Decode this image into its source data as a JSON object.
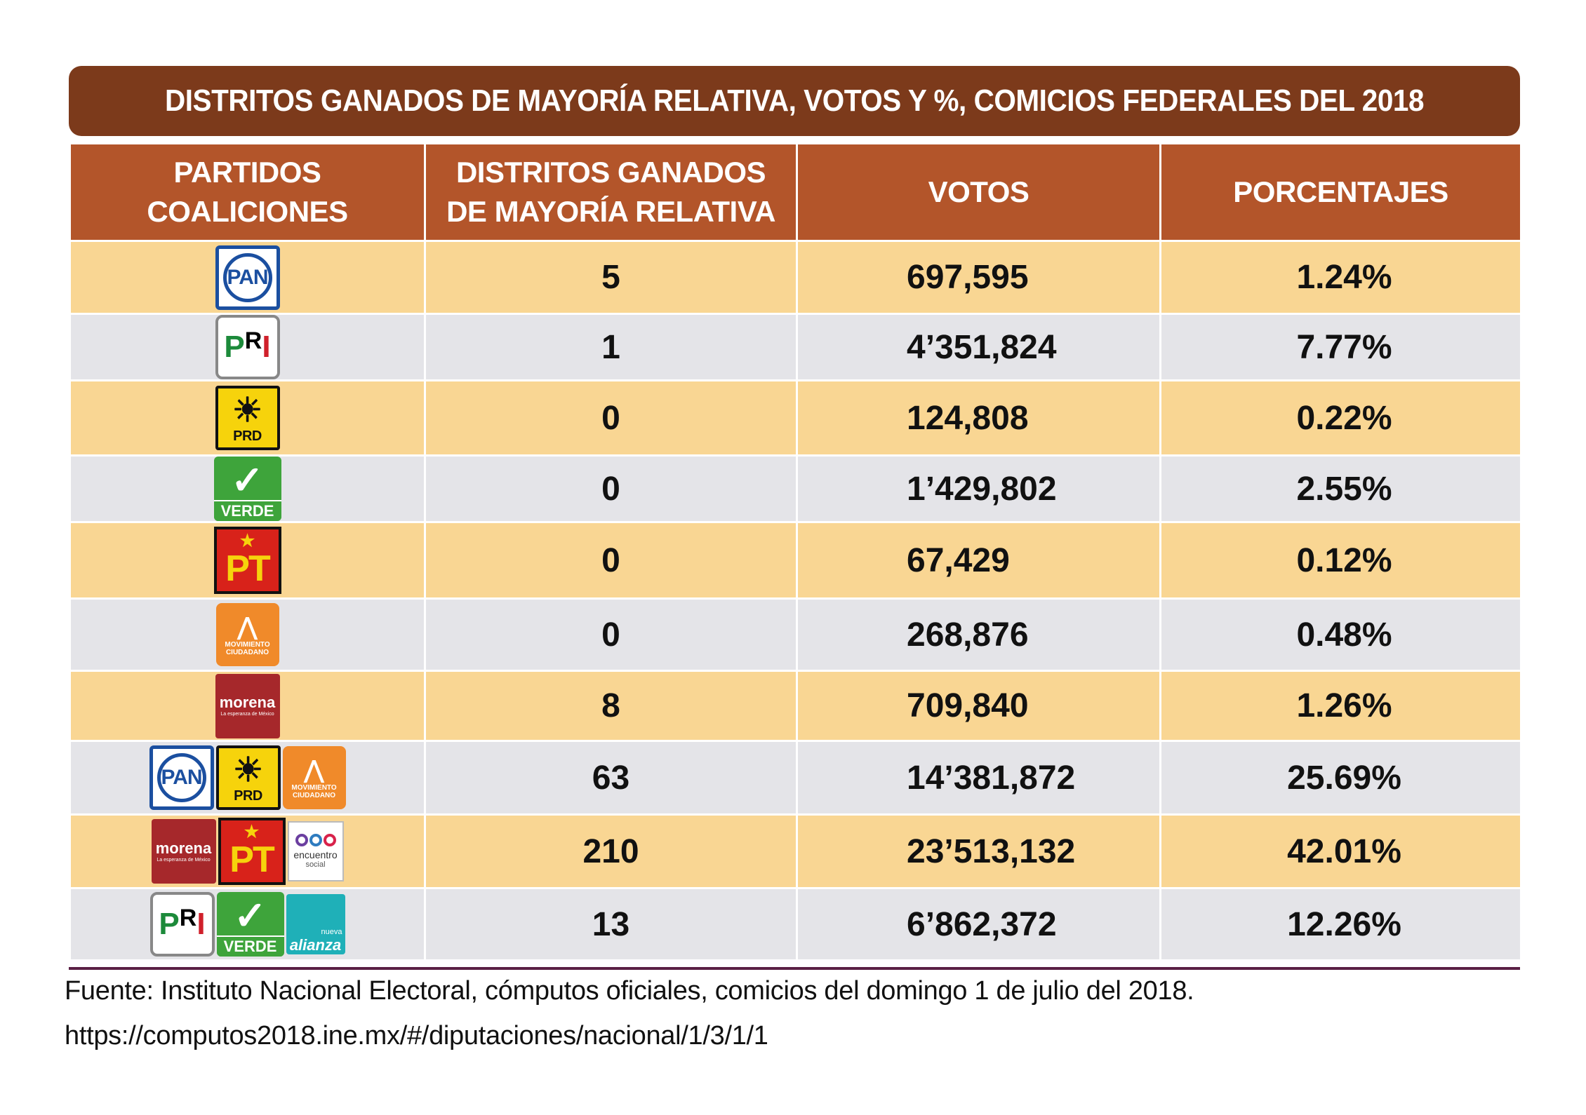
{
  "chart_data": {
    "type": "table",
    "title": "DISTRITOS GANADOS DE MAYORÍA RELATIVA, VOTOS Y %, COMICIOS FEDERALES DEL 2018",
    "columns": [
      "PARTIDOS COALICIONES",
      "DISTRITOS GANADOS DE MAYORÍA RELATIVA",
      "VOTOS",
      "PORCENTAJES"
    ],
    "header_lines": {
      "col1": [
        "PARTIDOS",
        "COALICIONES"
      ],
      "col2": [
        "DISTRITOS GANADOS",
        "DE MAYORÍA RELATIVA"
      ],
      "col3": "VOTOS",
      "col4": "PORCENTAJES"
    },
    "rows": [
      {
        "logos": [
          {
            "icon": "pan-logo",
            "text": "PAN"
          }
        ],
        "distritos": "5",
        "votos": "697,595",
        "porcentaje": "1.24%"
      },
      {
        "logos": [
          {
            "icon": "pri-logo",
            "text": "PRI"
          }
        ],
        "distritos": "1",
        "votos": "4’351,824",
        "porcentaje": "7.77%"
      },
      {
        "logos": [
          {
            "icon": "prd-logo",
            "text": "PRD"
          }
        ],
        "distritos": "0",
        "votos": "124,808",
        "porcentaje": "0.22%"
      },
      {
        "logos": [
          {
            "icon": "verde-logo",
            "text": "VERDE"
          }
        ],
        "distritos": "0",
        "votos": "1’429,802",
        "porcentaje": "2.55%"
      },
      {
        "logos": [
          {
            "icon": "pt-logo",
            "text": "PT"
          }
        ],
        "distritos": "0",
        "votos": "67,429",
        "porcentaje": "0.12%"
      },
      {
        "logos": [
          {
            "icon": "movimiento-ciudadano-logo",
            "text": "MOVIMIENTO CIUDADANO"
          }
        ],
        "distritos": "0",
        "votos": "268,876",
        "porcentaje": "0.48%"
      },
      {
        "logos": [
          {
            "icon": "morena-logo",
            "text": "morena"
          }
        ],
        "distritos": "8",
        "votos": "709,840",
        "porcentaje": "1.26%"
      },
      {
        "logos": [
          {
            "icon": "pan-logo",
            "text": "PAN"
          },
          {
            "icon": "prd-logo",
            "text": "PRD"
          },
          {
            "icon": "movimiento-ciudadano-logo",
            "text": "MOVIMIENTO CIUDADANO"
          }
        ],
        "distritos": "63",
        "votos": "14’381,872",
        "porcentaje": "25.69%"
      },
      {
        "logos": [
          {
            "icon": "morena-logo",
            "text": "morena"
          },
          {
            "icon": "pt-logo",
            "text": "PT"
          },
          {
            "icon": "encuentro-social-logo",
            "text": "encuentro social"
          }
        ],
        "distritos": "210",
        "votos": "23’513,132",
        "porcentaje": "42.01%"
      },
      {
        "logos": [
          {
            "icon": "pri-logo",
            "text": "PRI"
          },
          {
            "icon": "verde-logo",
            "text": "VERDE"
          },
          {
            "icon": "nueva-alianza-logo",
            "text": "nueva alianza"
          }
        ],
        "distritos": "13",
        "votos": "6’862,372",
        "porcentaje": "12.26%"
      }
    ],
    "colors": {
      "title_bg": "#7c3a1b",
      "header_bg": "#b3552a",
      "row_odd": "#f9d693",
      "row_even": "#e4e4e8"
    }
  },
  "source": {
    "line1": "Fuente: Instituto Nacional Electoral, cómputos oficiales, comicios del domingo 1 de julio del 2018.",
    "line2": "https://computos2018.ine.mx/#/diputaciones/nacional/1/3/1/1"
  },
  "logo_sub": {
    "morena": "La esperanza de México",
    "mc_line1": "MOVIMIENTO",
    "mc_line2": "CIUDADANO",
    "es_line1": "encuentro",
    "es_line2": "social",
    "na_line1": "nueva",
    "na_line2": "alianza"
  }
}
